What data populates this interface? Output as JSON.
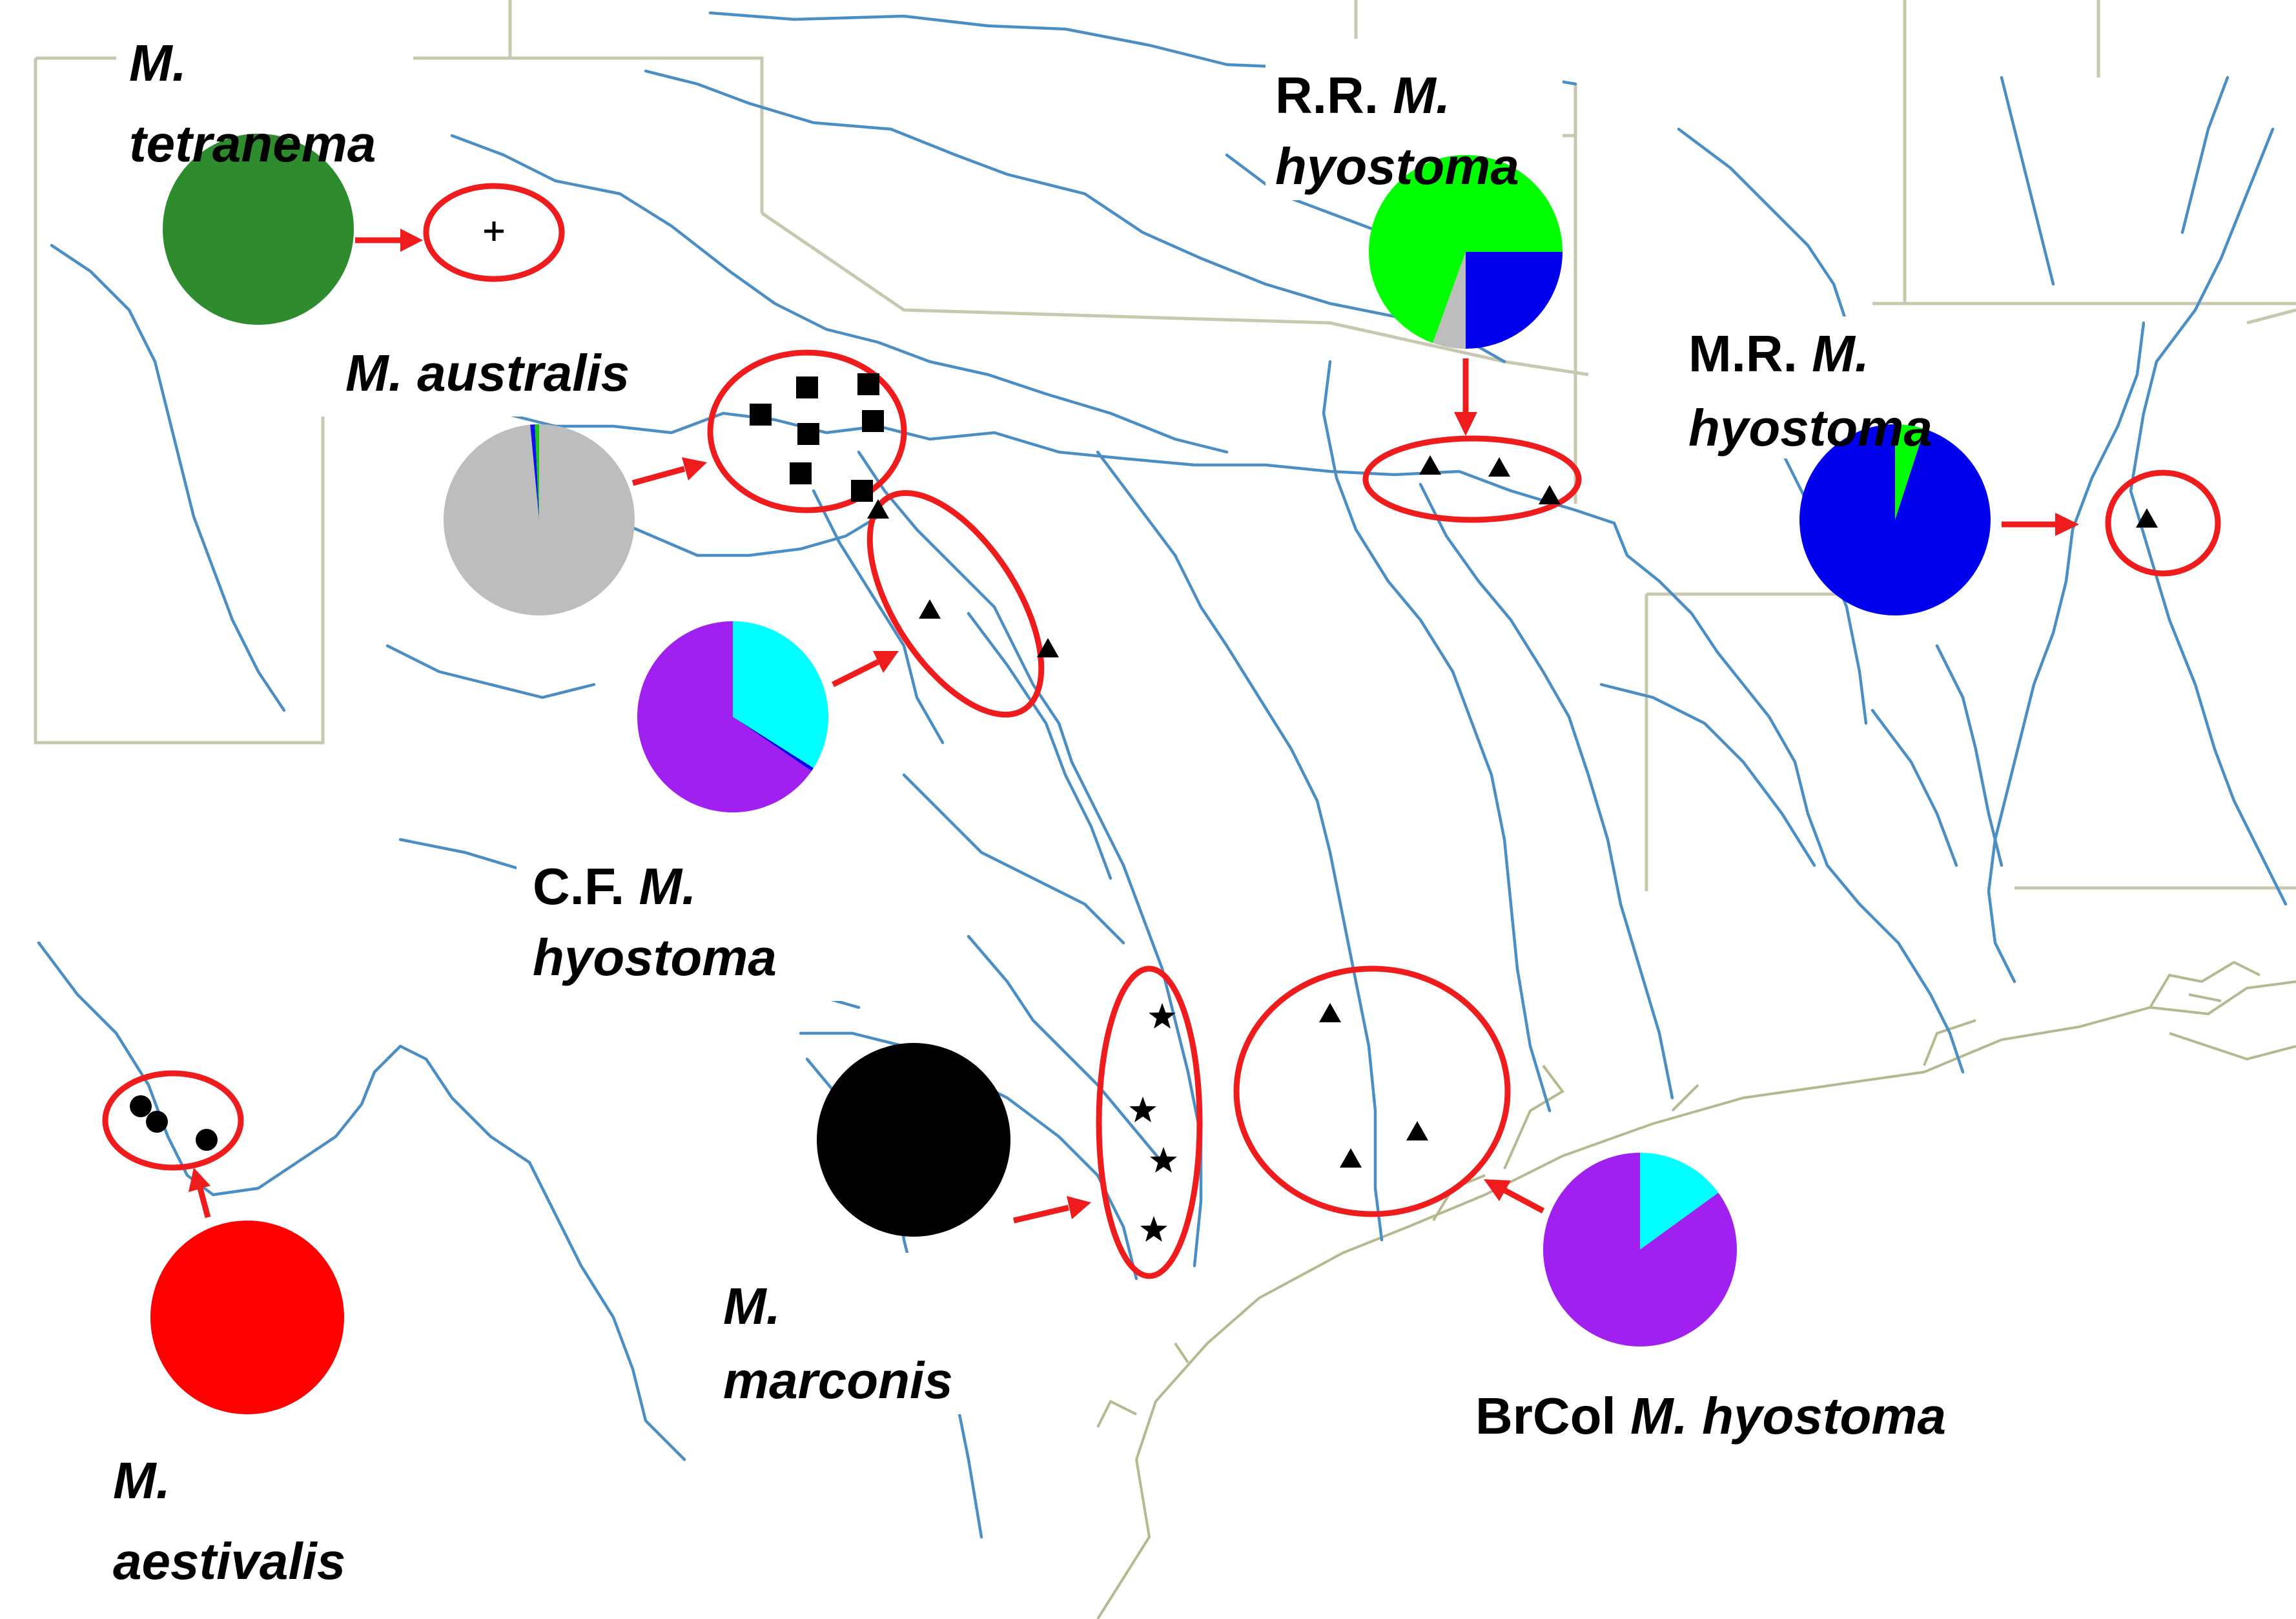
{
  "colors": {
    "river": "#4a8ec4",
    "state_border": "#c8c8b0",
    "coast": "#b8b890",
    "annotation": "#ee1c1c",
    "marker": "#000000"
  },
  "groups": [
    {
      "id": "tetranema",
      "label_lines": [
        {
          "prefix": "",
          "italic": "M."
        },
        {
          "prefix": "",
          "italic": "tetranema"
        }
      ],
      "marker_symbol": "plus",
      "pie": [
        {
          "color": "#2e8b2e",
          "fraction": 1.0
        }
      ]
    },
    {
      "id": "australis",
      "label_lines": [
        {
          "prefix": "",
          "italic": "M. australis"
        }
      ],
      "marker_symbol": "square",
      "pie": [
        {
          "color": "#bdbdbd",
          "fraction": 0.985
        },
        {
          "color": "#1010ee",
          "fraction": 0.008
        },
        {
          "color": "#14c814",
          "fraction": 0.007
        }
      ]
    },
    {
      "id": "cf_hyostoma",
      "label_lines": [
        {
          "prefix": "C.F. ",
          "italic": "M."
        },
        {
          "prefix": "",
          "italic": "hyostoma"
        }
      ],
      "marker_symbol": "triangle",
      "pie": [
        {
          "color": "#00ffff",
          "fraction": 0.34
        },
        {
          "color": "#0000ee",
          "fraction": 0.006
        },
        {
          "color": "#a020f0",
          "fraction": 0.654
        }
      ]
    },
    {
      "id": "rr_hyostoma",
      "label_lines": [
        {
          "prefix": "R.R. ",
          "italic": "M."
        },
        {
          "prefix": "",
          "italic": "hyostoma"
        }
      ],
      "marker_symbol": "triangle",
      "pie": [
        {
          "color": "#0000ee",
          "fraction": 0.25
        },
        {
          "color": "#bdbdbd",
          "fraction": 0.055
        },
        {
          "color": "#00ff00",
          "fraction": 0.695
        }
      ]
    },
    {
      "id": "mr_hyostoma",
      "label_lines": [
        {
          "prefix": "M.R. ",
          "italic": "M."
        },
        {
          "prefix": "",
          "italic": "hyostoma"
        }
      ],
      "marker_symbol": "triangle",
      "pie": [
        {
          "color": "#00ff00",
          "fraction": 0.05
        },
        {
          "color": "#0000ee",
          "fraction": 0.95
        }
      ]
    },
    {
      "id": "aestivalis",
      "label_lines": [
        {
          "prefix": "",
          "italic": "M."
        },
        {
          "prefix": "",
          "italic": "aestivalis"
        }
      ],
      "marker_symbol": "circle",
      "pie": [
        {
          "color": "#ff0000",
          "fraction": 1.0
        }
      ]
    },
    {
      "id": "marconis",
      "label_lines": [
        {
          "prefix": "",
          "italic": "M."
        },
        {
          "prefix": "",
          "italic": "marconis"
        }
      ],
      "marker_symbol": "star",
      "pie": [
        {
          "color": "#000000",
          "fraction": 1.0
        }
      ]
    },
    {
      "id": "brcol_hyostoma",
      "label_lines": [
        {
          "prefix": "BrCol ",
          "italic": "M. hyostoma"
        }
      ],
      "marker_symbol": "triangle",
      "pie": [
        {
          "color": "#00ffff",
          "fraction": 0.15
        },
        {
          "color": "#a020f0",
          "fraction": 0.85
        }
      ]
    }
  ]
}
